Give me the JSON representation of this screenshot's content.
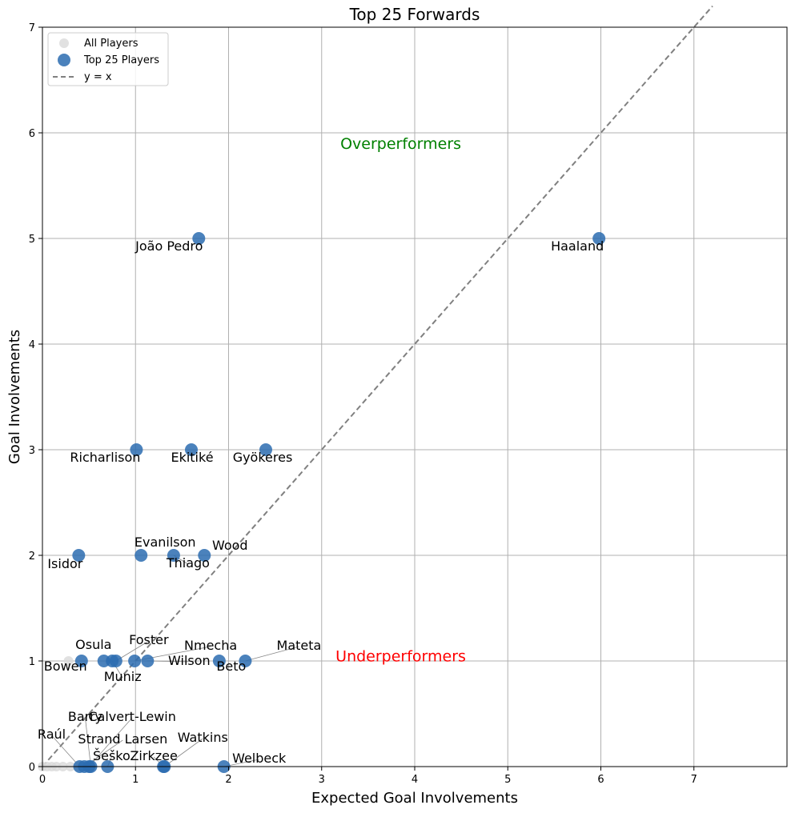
{
  "chart_data": {
    "type": "scatter",
    "title": "Top 25 Forwards",
    "xlabel": "Expected Goal Involvements",
    "ylabel": "Goal Involvements",
    "xlim": [
      0,
      8
    ],
    "ylim": [
      0,
      7
    ],
    "xticks": [
      "0",
      "1",
      "2",
      "3",
      "4",
      "5",
      "6",
      "7"
    ],
    "yticks": [
      "0",
      "1",
      "2",
      "3",
      "4",
      "5",
      "6",
      "7"
    ],
    "grid": true,
    "legend": {
      "position": "top-left",
      "entries": [
        "All Players",
        "Top 25 Players",
        "y = x"
      ]
    },
    "colors": {
      "top": "#2b6cb0",
      "all": "#d9d9d9",
      "diagonal": "#808080",
      "overperformers": "#008000",
      "underperformers": "#ff0000",
      "grid": "#b0b0b0"
    },
    "annotations": [
      {
        "text": "Overperformers",
        "x": 3.85,
        "y": 5.9,
        "color": "#008000"
      },
      {
        "text": "Underperformers",
        "x": 3.85,
        "y": 1.05,
        "color": "#ff0000"
      }
    ],
    "series": [
      {
        "name": "All Players",
        "points": [
          {
            "x": 0.0,
            "y": 0
          },
          {
            "x": 0.05,
            "y": 0
          },
          {
            "x": 0.1,
            "y": 0
          },
          {
            "x": 0.15,
            "y": 0
          },
          {
            "x": 0.22,
            "y": 0
          },
          {
            "x": 0.3,
            "y": 0
          },
          {
            "x": 0.38,
            "y": 0
          },
          {
            "x": 0.28,
            "y": 1
          }
        ]
      },
      {
        "name": "Top 25 Players",
        "points": [
          {
            "label": "Haaland",
            "x": 5.98,
            "y": 5
          },
          {
            "label": "João Pedro",
            "x": 1.68,
            "y": 5
          },
          {
            "label": "Richarlison",
            "x": 1.01,
            "y": 3
          },
          {
            "label": "Ekitiké",
            "x": 1.6,
            "y": 3
          },
          {
            "label": "Gyökeres",
            "x": 2.4,
            "y": 3
          },
          {
            "label": "Isidor",
            "x": 0.39,
            "y": 2
          },
          {
            "label": "Evanilson",
            "x": 1.06,
            "y": 2
          },
          {
            "label": "Thiago",
            "x": 1.41,
            "y": 2
          },
          {
            "label": "Wood",
            "x": 1.74,
            "y": 2
          },
          {
            "label": "Osula",
            "x": 0.42,
            "y": 1
          },
          {
            "label": "Bowen",
            "x": 0.66,
            "y": 1
          },
          {
            "label": "Muniz",
            "x": 0.75,
            "y": 1
          },
          {
            "label": "Foster",
            "x": 0.79,
            "y": 1
          },
          {
            "label": "Nmecha",
            "x": 0.99,
            "y": 1
          },
          {
            "label": "Wilson",
            "x": 1.13,
            "y": 1
          },
          {
            "label": "Beto",
            "x": 1.9,
            "y": 1
          },
          {
            "label": "Mateta",
            "x": 2.18,
            "y": 1
          },
          {
            "label": "Calvert-Lewin",
            "x": 0.5,
            "y": 0
          },
          {
            "label": "Barry",
            "x": 0.52,
            "y": 0
          },
          {
            "label": "Raúl",
            "x": 0.4,
            "y": 0
          },
          {
            "label": "Strand Larsen",
            "x": 0.45,
            "y": 0
          },
          {
            "label": "Šeško",
            "x": 0.7,
            "y": 0
          },
          {
            "label": "Zirkzee",
            "x": 1.3,
            "y": 0
          },
          {
            "label": "Watkins",
            "x": 1.31,
            "y": 0
          },
          {
            "label": "Welbeck",
            "x": 1.95,
            "y": 0
          }
        ]
      },
      {
        "name": "y = x",
        "line": [
          [
            0,
            0
          ],
          [
            7.2,
            7.2
          ]
        ]
      }
    ]
  }
}
